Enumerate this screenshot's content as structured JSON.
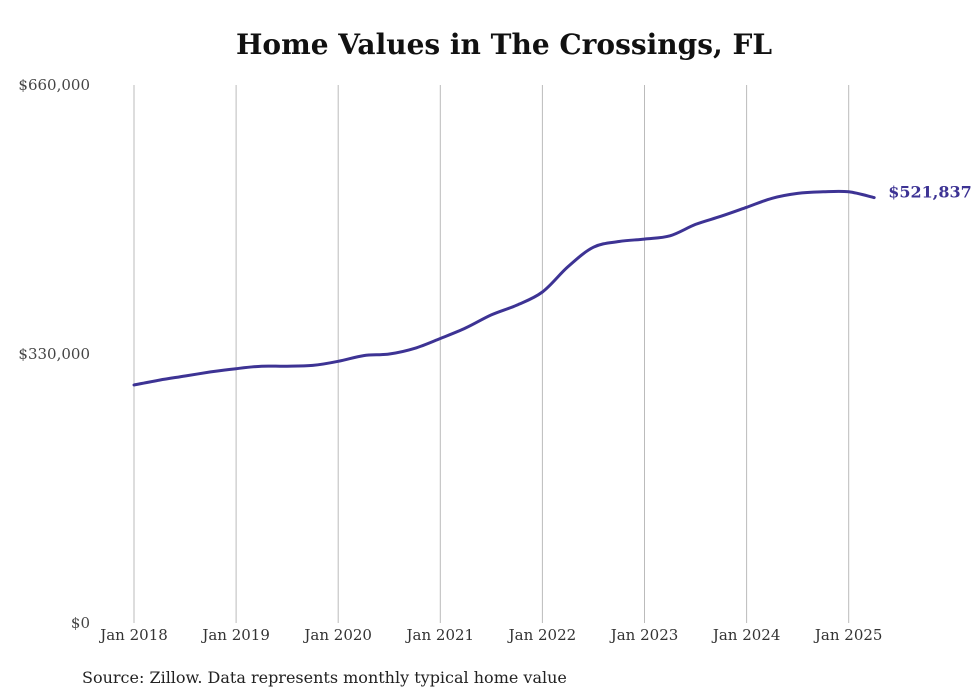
{
  "chart_data": {
    "type": "line",
    "title": "Home Values in The Crossings, FL",
    "source": "Source: Zillow. Data represents monthly typical home value",
    "xlabel": "",
    "ylabel": "",
    "ylim": [
      0,
      660000
    ],
    "y_ticks": [
      "$0",
      "$330,000",
      "$660,000"
    ],
    "y_tick_values": [
      0,
      330000,
      660000
    ],
    "x_ticks": [
      "Jan 2018",
      "Jan 2019",
      "Jan 2020",
      "Jan 2021",
      "Jan 2022",
      "Jan 2023",
      "Jan 2024",
      "Jan 2025"
    ],
    "grid": "vertical",
    "end_label": "$521,837",
    "colors": {
      "line": "#3d3394",
      "grid": "#bbbbbb"
    },
    "series": [
      {
        "name": "",
        "x": [
          "2018-01",
          "2018-04",
          "2018-07",
          "2018-10",
          "2019-01",
          "2019-04",
          "2019-07",
          "2019-10",
          "2020-01",
          "2020-04",
          "2020-07",
          "2020-10",
          "2021-01",
          "2021-04",
          "2021-07",
          "2021-10",
          "2022-01",
          "2022-04",
          "2022-07",
          "2022-10",
          "2023-01",
          "2023-04",
          "2023-07",
          "2023-10",
          "2024-01",
          "2024-04",
          "2024-07",
          "2024-10",
          "2025-01",
          "2025-04"
        ],
        "values": [
          292000,
          298000,
          303000,
          308000,
          312000,
          315000,
          315000,
          316000,
          321000,
          328000,
          330000,
          337000,
          349000,
          362000,
          378000,
          390000,
          406000,
          437000,
          461000,
          468000,
          471000,
          475000,
          489000,
          499000,
          510000,
          521000,
          527000,
          529000,
          529000,
          521837
        ]
      }
    ]
  }
}
